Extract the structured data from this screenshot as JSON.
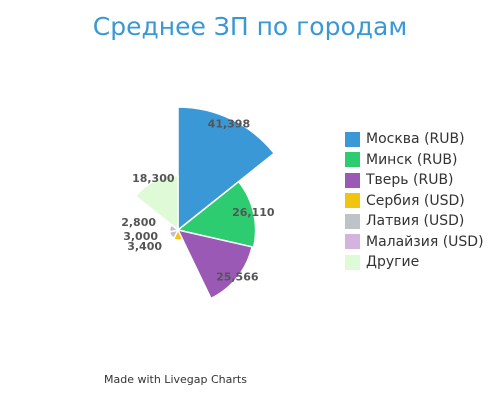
{
  "chart_data": {
    "type": "polar-area",
    "title": "Среднее ЗП по городам",
    "legend_position": "right",
    "series": [
      {
        "name": "Москва (RUB)",
        "value": 41398,
        "label": "41,398",
        "color": "#3a98d6"
      },
      {
        "name": "Минск (RUB)",
        "value": 26110,
        "label": "26,110",
        "color": "#2ecc71"
      },
      {
        "name": "Тверь (RUB)",
        "value": 25566,
        "label": "25,566",
        "color": "#9b59b6"
      },
      {
        "name": "Сербия (USD)",
        "value": 3400,
        "label": "3,400",
        "color": "#f1c40f"
      },
      {
        "name": "Латвия (USD)",
        "value": 3000,
        "label": "3,000",
        "color": "#bdc3c7"
      },
      {
        "name": "Малайзия (USD)",
        "value": 2800,
        "label": "2,800",
        "color": "#d2b4de"
      },
      {
        "name": "Другие",
        "value": 18300,
        "label": "18,300",
        "color": "#dffad7"
      }
    ]
  },
  "credit": "Made with Livegap Charts"
}
